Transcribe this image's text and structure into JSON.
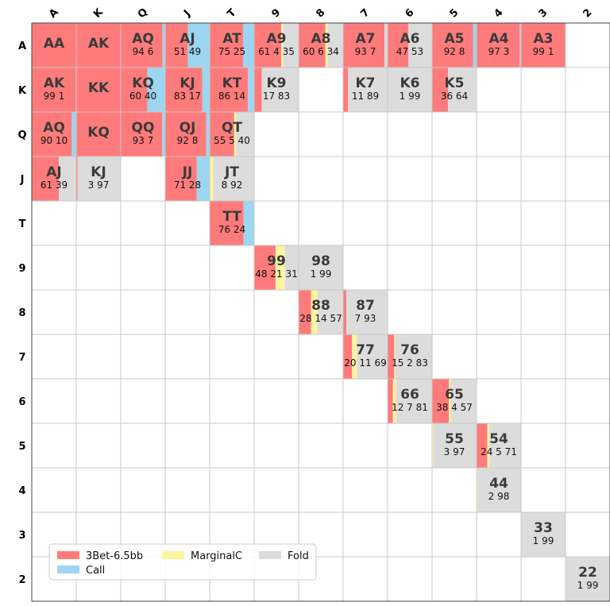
{
  "chart_data": {
    "type": "heatmap",
    "title": "",
    "col_labels": [
      "A",
      "K",
      "Q",
      "J",
      "T",
      "9",
      "8",
      "7",
      "6",
      "5",
      "4",
      "3",
      "2"
    ],
    "row_labels": [
      "A",
      "K",
      "Q",
      "J",
      "T",
      "9",
      "8",
      "7",
      "6",
      "5",
      "4",
      "3",
      "2"
    ],
    "series": [
      {
        "name": "3Bet-6.5bb",
        "color": "#ff7b7b"
      },
      {
        "name": "Call",
        "color": "#9dd6f0"
      },
      {
        "name": "MarginalC",
        "color": "#fff4a0"
      },
      {
        "name": "Fold",
        "color": "#dcdcdc"
      }
    ],
    "legend_position": "bottom-left",
    "cells": [
      {
        "row": 0,
        "col": 0,
        "hand": "AA",
        "freq": [
          100,
          0,
          0,
          0
        ],
        "label": ""
      },
      {
        "row": 0,
        "col": 1,
        "hand": "AK",
        "freq": [
          100,
          0,
          0,
          0
        ],
        "label": ""
      },
      {
        "row": 0,
        "col": 2,
        "hand": "AQ",
        "freq": [
          94,
          6,
          0,
          0
        ],
        "label": "94 6"
      },
      {
        "row": 0,
        "col": 3,
        "hand": "AJ",
        "freq": [
          51,
          49,
          0,
          0
        ],
        "label": "51 49"
      },
      {
        "row": 0,
        "col": 4,
        "hand": "AT",
        "freq": [
          75,
          25,
          0,
          0
        ],
        "label": "75 25"
      },
      {
        "row": 0,
        "col": 5,
        "hand": "A9",
        "freq": [
          61,
          0,
          4,
          35
        ],
        "label": "61  4 35"
      },
      {
        "row": 0,
        "col": 6,
        "hand": "A8",
        "freq": [
          60,
          0,
          6,
          34
        ],
        "label": "60  6 34"
      },
      {
        "row": 0,
        "col": 7,
        "hand": "A7",
        "freq": [
          93,
          0,
          0,
          7
        ],
        "label": "93   7"
      },
      {
        "row": 0,
        "col": 8,
        "hand": "A6",
        "freq": [
          47,
          0,
          0,
          53
        ],
        "label": "47   53"
      },
      {
        "row": 0,
        "col": 9,
        "hand": "A5",
        "freq": [
          92,
          8,
          0,
          0
        ],
        "label": "92 8"
      },
      {
        "row": 0,
        "col": 10,
        "hand": "A4",
        "freq": [
          97,
          3,
          0,
          0
        ],
        "label": "97 3"
      },
      {
        "row": 0,
        "col": 11,
        "hand": "A3",
        "freq": [
          99,
          1,
          0,
          0
        ],
        "label": "99 1"
      },
      {
        "row": 1,
        "col": 0,
        "hand": "AK",
        "freq": [
          99,
          1,
          0,
          0
        ],
        "label": "99 1"
      },
      {
        "row": 1,
        "col": 1,
        "hand": "KK",
        "freq": [
          100,
          0,
          0,
          0
        ],
        "label": ""
      },
      {
        "row": 1,
        "col": 2,
        "hand": "KQ",
        "freq": [
          60,
          40,
          0,
          0
        ],
        "label": "60 40"
      },
      {
        "row": 1,
        "col": 3,
        "hand": "KJ",
        "freq": [
          83,
          17,
          0,
          0
        ],
        "label": "83 17"
      },
      {
        "row": 1,
        "col": 4,
        "hand": "KT",
        "freq": [
          86,
          14,
          0,
          0
        ],
        "label": "86 14"
      },
      {
        "row": 1,
        "col": 5,
        "hand": "K9",
        "freq": [
          17,
          0,
          0,
          83
        ],
        "label": "17   83"
      },
      {
        "row": 1,
        "col": 7,
        "hand": "K7",
        "freq": [
          11,
          0,
          0,
          89
        ],
        "label": "11   89"
      },
      {
        "row": 1,
        "col": 8,
        "hand": "K6",
        "freq": [
          1,
          0,
          0,
          99
        ],
        "label": "1   99"
      },
      {
        "row": 1,
        "col": 9,
        "hand": "K5",
        "freq": [
          36,
          0,
          0,
          64
        ],
        "label": "36   64"
      },
      {
        "row": 2,
        "col": 0,
        "hand": "AQ",
        "freq": [
          90,
          10,
          0,
          0
        ],
        "label": "90 10"
      },
      {
        "row": 2,
        "col": 1,
        "hand": "KQ",
        "freq": [
          100,
          0,
          0,
          0
        ],
        "label": ""
      },
      {
        "row": 2,
        "col": 2,
        "hand": "QQ",
        "freq": [
          93,
          7,
          0,
          0
        ],
        "label": "93 7"
      },
      {
        "row": 2,
        "col": 3,
        "hand": "QJ",
        "freq": [
          92,
          8,
          0,
          0
        ],
        "label": "92 8"
      },
      {
        "row": 2,
        "col": 4,
        "hand": "QT",
        "freq": [
          55,
          0,
          5,
          40
        ],
        "label": "55  5 40"
      },
      {
        "row": 3,
        "col": 0,
        "hand": "AJ",
        "freq": [
          61,
          0,
          0,
          39
        ],
        "label": "61   39"
      },
      {
        "row": 3,
        "col": 1,
        "hand": "KJ",
        "freq": [
          3,
          0,
          0,
          97
        ],
        "label": "3   97"
      },
      {
        "row": 3,
        "col": 3,
        "hand": "JJ",
        "freq": [
          71,
          28,
          0,
          0
        ],
        "label": "71 28"
      },
      {
        "row": 3,
        "col": 4,
        "hand": "JT",
        "freq": [
          0,
          0,
          8,
          92
        ],
        "label": "8 92"
      },
      {
        "row": 4,
        "col": 4,
        "hand": "TT",
        "freq": [
          76,
          24,
          0,
          0
        ],
        "label": "76 24"
      },
      {
        "row": 5,
        "col": 5,
        "hand": "99",
        "freq": [
          48,
          0,
          21,
          31
        ],
        "label": "48  21 31"
      },
      {
        "row": 5,
        "col": 6,
        "hand": "98",
        "freq": [
          1,
          0,
          0,
          99
        ],
        "label": "1 99"
      },
      {
        "row": 6,
        "col": 6,
        "hand": "88",
        "freq": [
          28,
          0,
          14,
          57
        ],
        "label": "28  14 57"
      },
      {
        "row": 6,
        "col": 7,
        "hand": "87",
        "freq": [
          7,
          0,
          0,
          93
        ],
        "label": "7   93"
      },
      {
        "row": 7,
        "col": 7,
        "hand": "77",
        "freq": [
          20,
          0,
          11,
          69
        ],
        "label": "20  11 69"
      },
      {
        "row": 7,
        "col": 8,
        "hand": "76",
        "freq": [
          15,
          0,
          2,
          83
        ],
        "label": "15  2 83"
      },
      {
        "row": 8,
        "col": 8,
        "hand": "66",
        "freq": [
          12,
          0,
          7,
          81
        ],
        "label": "12  7 81"
      },
      {
        "row": 8,
        "col": 9,
        "hand": "65",
        "freq": [
          38,
          0,
          4,
          57
        ],
        "label": "38  4 57"
      },
      {
        "row": 9,
        "col": 9,
        "hand": "55",
        "freq": [
          0,
          0,
          3,
          97
        ],
        "label": "3 97"
      },
      {
        "row": 9,
        "col": 10,
        "hand": "54",
        "freq": [
          24,
          0,
          5,
          71
        ],
        "label": "24  5 71"
      },
      {
        "row": 10,
        "col": 10,
        "hand": "44",
        "freq": [
          0,
          0,
          2,
          98
        ],
        "label": "2 98"
      },
      {
        "row": 11,
        "col": 11,
        "hand": "33",
        "freq": [
          0,
          0,
          1,
          99
        ],
        "label": "1 99"
      },
      {
        "row": 12,
        "col": 12,
        "hand": "22",
        "freq": [
          0,
          0,
          1,
          99
        ],
        "label": "1 99"
      }
    ]
  }
}
